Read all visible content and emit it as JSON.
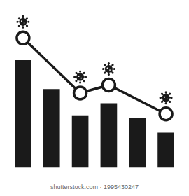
{
  "chart_data": {
    "type": "bar",
    "categories": [
      null,
      null,
      null,
      null,
      null,
      null
    ],
    "series": [
      {
        "type": "bar",
        "color": "#1a1a1a",
        "values": [
          160,
          117,
          78,
          96,
          74,
          52
        ]
      },
      {
        "type": "line",
        "color": "#1a1a1a",
        "marker": "circle",
        "line_style": "solid",
        "values": [
          193,
          null,
          111,
          123,
          null,
          80
        ]
      }
    ],
    "ylim": [
      0,
      210
    ],
    "grid": false,
    "tick_labels": false
  },
  "caption": "shutterstock.com · 1995430247"
}
